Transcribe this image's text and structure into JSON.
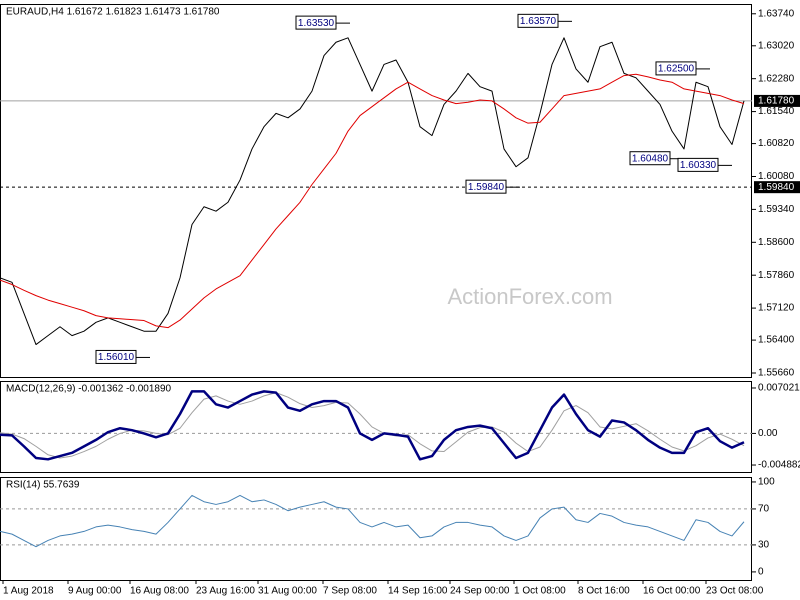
{
  "chart_data": [
    {
      "type": "line",
      "title": "EURAUD,H4  1.61672 1.61823 1.61473 1.61780",
      "watermark": "ActionForex.com",
      "x": [
        0,
        12,
        24,
        36,
        48,
        60,
        72,
        84,
        96,
        108,
        120,
        132,
        144,
        156,
        168,
        180,
        192,
        204,
        216,
        228,
        240,
        252,
        264,
        276,
        288,
        300,
        312,
        324,
        336,
        348,
        360,
        372,
        384,
        396,
        408,
        420,
        432,
        444,
        456,
        468,
        480,
        492,
        504,
        516,
        528,
        540,
        552,
        564,
        576,
        588,
        600,
        612,
        624,
        636,
        648,
        660,
        672,
        684,
        696,
        708,
        720,
        732,
        744
      ],
      "xlim": [
        0,
        752
      ],
      "series": [
        {
          "color": "#000000",
          "line_width": 1,
          "values": [
            1.578,
            1.577,
            1.57,
            1.563,
            1.565,
            1.567,
            1.565,
            1.566,
            1.568,
            1.569,
            1.568,
            1.567,
            1.566,
            1.566,
            1.57,
            1.578,
            1.59,
            1.594,
            1.593,
            1.595,
            1.6,
            1.607,
            1.612,
            1.615,
            1.614,
            1.616,
            1.62,
            1.628,
            1.631,
            1.632,
            1.626,
            1.62,
            1.626,
            1.627,
            1.622,
            1.612,
            1.61,
            1.617,
            1.62,
            1.624,
            1.621,
            1.62,
            1.607,
            1.603,
            1.605,
            1.615,
            1.626,
            1.632,
            1.625,
            1.622,
            1.63,
            1.631,
            1.624,
            1.623,
            1.62,
            1.617,
            1.611,
            1.607,
            1.622,
            1.621,
            1.612,
            1.608,
            1.6178
          ]
        },
        {
          "color": "#e00000",
          "line_width": 1,
          "values": [
            1.5775,
            1.5765,
            1.5752,
            1.574,
            1.573,
            1.5722,
            1.5714,
            1.5706,
            1.5695,
            1.569,
            1.5688,
            1.5686,
            1.5684,
            1.5672,
            1.5668,
            1.5685,
            1.571,
            1.5735,
            1.5755,
            1.577,
            1.5785,
            1.582,
            1.5855,
            1.589,
            1.592,
            1.595,
            1.599,
            1.6025,
            1.606,
            1.611,
            1.6145,
            1.6165,
            1.6185,
            1.6205,
            1.622,
            1.6205,
            1.619,
            1.618,
            1.6172,
            1.6175,
            1.618,
            1.6178,
            1.616,
            1.614,
            1.6128,
            1.613,
            1.616,
            1.619,
            1.6195,
            1.62,
            1.6205,
            1.622,
            1.6235,
            1.6238,
            1.6232,
            1.6225,
            1.622,
            1.6205,
            1.62,
            1.6195,
            1.619,
            1.618,
            1.6172
          ]
        }
      ],
      "ylim": [
        1.5557,
        1.6396
      ],
      "yticks": [
        {
          "value": 1.6374,
          "label": "1.63740"
        },
        {
          "value": 1.6302,
          "label": "1.63020"
        },
        {
          "value": 1.6228,
          "label": "1.62280"
        },
        {
          "value": 1.6154,
          "label": "1.61540"
        },
        {
          "value": 1.6082,
          "label": "1.60820"
        },
        {
          "value": 1.6008,
          "label": "1.60080"
        },
        {
          "value": 1.5934,
          "label": "1.59340"
        },
        {
          "value": 1.586,
          "label": "1.58600"
        },
        {
          "value": 1.5786,
          "label": "1.57860"
        },
        {
          "value": 1.5712,
          "label": "1.57120"
        },
        {
          "value": 1.564,
          "label": "1.56400"
        },
        {
          "value": 1.5566,
          "label": "1.55660"
        }
      ],
      "hlines": [
        {
          "value": 1.6178,
          "label": "1.61780",
          "style": "solid"
        },
        {
          "value": 1.5984,
          "label": "1.59840",
          "style": "dashed"
        }
      ],
      "annotations": [
        {
          "x": 350,
          "value": 1.6353,
          "label": "1.63530"
        },
        {
          "x": 572,
          "value": 1.6357,
          "label": "1.63570"
        },
        {
          "x": 710,
          "value": 1.625,
          "label": "1.62500"
        },
        {
          "x": 684,
          "value": 1.6048,
          "label": "1.60480"
        },
        {
          "x": 732,
          "value": 1.6033,
          "label": "1.60330"
        },
        {
          "x": 520,
          "value": 1.5984,
          "label": "1.59840"
        },
        {
          "x": 150,
          "value": 1.5601,
          "label": "1.56010"
        }
      ],
      "xticks": [
        {
          "value": 3,
          "label": "1 Aug 2018"
        },
        {
          "value": 68,
          "label": "9 Aug 00:00"
        },
        {
          "value": 130,
          "label": "16 Aug 08:00"
        },
        {
          "value": 196,
          "label": "23 Aug 16:00"
        },
        {
          "value": 258,
          "label": "31 Aug 00:00"
        },
        {
          "value": 323,
          "label": "7 Sep 08:00"
        },
        {
          "value": 388,
          "label": "14 Sep 16:00"
        },
        {
          "value": 450,
          "label": "24 Sep 00:00"
        },
        {
          "value": 514,
          "label": "1 Oct 08:00"
        },
        {
          "value": 578,
          "label": "8 Oct 16:00"
        },
        {
          "value": 643,
          "label": "16 Oct 00:00"
        },
        {
          "value": 706,
          "label": "23 Oct 08:00"
        }
      ]
    },
    {
      "type": "line",
      "title": "MACD(12,26,9) -0.001362 -0.001890",
      "x": [
        0,
        12,
        24,
        36,
        48,
        60,
        72,
        84,
        96,
        108,
        120,
        132,
        144,
        156,
        168,
        180,
        192,
        204,
        216,
        228,
        240,
        252,
        264,
        276,
        288,
        300,
        312,
        324,
        336,
        348,
        360,
        372,
        384,
        396,
        408,
        420,
        432,
        444,
        456,
        468,
        480,
        492,
        504,
        516,
        528,
        540,
        552,
        564,
        576,
        588,
        600,
        612,
        624,
        636,
        648,
        660,
        672,
        684,
        696,
        708,
        720,
        732,
        744
      ],
      "xlim": [
        0,
        752
      ],
      "series": [
        {
          "color": "#a0a0a0",
          "line_width": 1,
          "values": [
            0.0001,
            -0.0001,
            -0.0008,
            -0.002,
            -0.0033,
            -0.0038,
            -0.0035,
            -0.0028,
            -0.002,
            -0.0009,
            0,
            0.0005,
            0.0004,
            0,
            -0.0002,
            0.0008,
            0.0032,
            0.0053,
            0.0058,
            0.005,
            0.0045,
            0.005,
            0.0058,
            0.0063,
            0.0056,
            0.0046,
            0.004,
            0.0043,
            0.0048,
            0.0047,
            0.003,
            0.001,
            0,
            -0.0004,
            -0.0002,
            -0.0016,
            -0.0027,
            -0.0028,
            -0.0013,
            0.0002,
            0.0009,
            0.001,
            0.0002,
            -0.0015,
            -0.0028,
            -0.0021,
            0.0005,
            0.0035,
            0.0043,
            0.0032,
            0.001,
            0.0007,
            0.0011,
            0.0015,
            0.0004,
            -0.0009,
            -0.0021,
            -0.0027,
            -0.0019,
            -0.0007,
            -0.0001,
            -0.0009,
            -0.00189
          ]
        },
        {
          "color": "#000080",
          "line_width": 2.5,
          "values": [
            -0.0002,
            -0.0003,
            -0.002,
            -0.0038,
            -0.004,
            -0.0035,
            -0.003,
            -0.002,
            -0.001,
            0.0002,
            0.0008,
            0.0005,
            0,
            -0.0006,
            0,
            0.003,
            0.0065,
            0.0065,
            0.0045,
            0.004,
            0.005,
            0.006,
            0.0065,
            0.0063,
            0.004,
            0.0035,
            0.0045,
            0.005,
            0.005,
            0.004,
            0,
            -0.001,
            0,
            -0.0002,
            -0.0005,
            -0.004,
            -0.0035,
            -0.001,
            0.0005,
            0.001,
            0.0012,
            0.0008,
            -0.0015,
            -0.0038,
            -0.003,
            0.0005,
            0.004,
            0.006,
            0.003,
            0.0005,
            -0.0005,
            0.002,
            0.0017,
            0.0005,
            -0.001,
            -0.0022,
            -0.003,
            -0.003,
            0.0002,
            0.0008,
            -0.0012,
            -0.0022,
            -0.001362
          ]
        }
      ],
      "ylim": [
        -0.00596,
        0.0081
      ],
      "yticks": [
        0.007021,
        {
          "value": 0,
          "label": "0.00"
        },
        -0.004882
      ],
      "hlines": [
        {
          "value": 0,
          "style": "dashed"
        }
      ]
    },
    {
      "type": "line",
      "title": "RSI(14) 55.7639",
      "x": [
        0,
        12,
        24,
        36,
        48,
        60,
        72,
        84,
        96,
        108,
        120,
        132,
        144,
        156,
        168,
        180,
        192,
        204,
        216,
        228,
        240,
        252,
        264,
        276,
        288,
        300,
        312,
        324,
        336,
        348,
        360,
        372,
        384,
        396,
        408,
        420,
        432,
        444,
        456,
        468,
        480,
        492,
        504,
        516,
        528,
        540,
        552,
        564,
        576,
        588,
        600,
        612,
        624,
        636,
        648,
        660,
        672,
        684,
        696,
        708,
        720,
        732,
        744
      ],
      "xlim": [
        0,
        752
      ],
      "series": [
        {
          "color": "#4682b4",
          "line_width": 1,
          "values": [
            45,
            42,
            35,
            28,
            35,
            40,
            42,
            45,
            50,
            52,
            50,
            47,
            45,
            42,
            55,
            70,
            85,
            78,
            75,
            78,
            85,
            78,
            80,
            75,
            68,
            72,
            75,
            78,
            72,
            70,
            55,
            50,
            55,
            50,
            52,
            38,
            40,
            50,
            55,
            55,
            52,
            50,
            40,
            35,
            40,
            60,
            70,
            72,
            58,
            55,
            65,
            62,
            55,
            52,
            50,
            45,
            40,
            35,
            58,
            55,
            45,
            40,
            55.7639
          ]
        }
      ],
      "ylim": [
        -9,
        105.5
      ],
      "yticks": [
        100,
        70,
        30,
        0
      ],
      "hlines": [
        {
          "value": 70,
          "style": "dashed"
        },
        {
          "value": 30,
          "style": "dashed"
        }
      ]
    }
  ]
}
